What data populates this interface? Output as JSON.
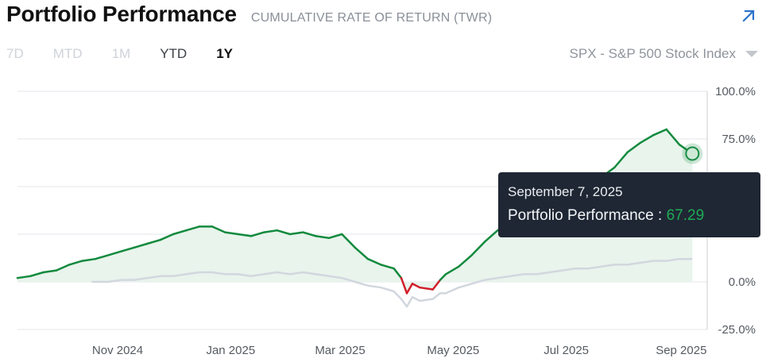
{
  "header": {
    "title": "Portfolio Performance",
    "subtitle": "CUMULATIVE RATE OF RETURN (TWR)"
  },
  "ranges": [
    {
      "label": "7D"
    },
    {
      "label": "MTD"
    },
    {
      "label": "1M"
    },
    {
      "label": "YTD"
    },
    {
      "label": "1Y",
      "active": true
    }
  ],
  "benchmark": {
    "label": "SPX - S&P 500 Stock Index"
  },
  "tooltip": {
    "date": "September 7, 2025",
    "series": "Portfolio Performance",
    "separator": " : ",
    "value": "67.29"
  },
  "colors": {
    "portfolio": "#138a3e",
    "portfolio_negative": "#d21f2b",
    "portfolio_fill": "#e8f4ec",
    "benchmark": "#d2d7de",
    "grid": "#e3e6ea",
    "marker": "#1a8c44"
  },
  "icons": {
    "expand": "arrow-up-right-icon",
    "dropdown": "caret-down-icon"
  },
  "chart_data": {
    "type": "line",
    "ylim": [
      -25,
      100
    ],
    "yticks": [
      100,
      75,
      50,
      25,
      0,
      -25
    ],
    "ytick_labels": [
      "100.0%",
      "75.0%",
      "",
      "",
      "0.0%",
      "-25.0%"
    ],
    "xlim": [
      "2024-09-08",
      "2025-09-15"
    ],
    "xticks": [
      "2024-11-01",
      "2025-01-01",
      "2025-03-01",
      "2025-05-01",
      "2025-07-01",
      "2025-09-01"
    ],
    "xtick_labels": [
      "Nov 2024",
      "Jan 2025",
      "Mar 2025",
      "May 2025",
      "Jul 2025",
      "Sep 2025"
    ],
    "grid": true,
    "series": [
      {
        "name": "Portfolio Performance",
        "x": [
          "2024-09-08",
          "2024-09-15",
          "2024-09-22",
          "2024-09-29",
          "2024-10-06",
          "2024-10-13",
          "2024-10-20",
          "2024-10-27",
          "2024-11-03",
          "2024-11-10",
          "2024-11-17",
          "2024-11-24",
          "2024-12-01",
          "2024-12-08",
          "2024-12-15",
          "2024-12-22",
          "2024-12-29",
          "2025-01-05",
          "2025-01-12",
          "2025-01-19",
          "2025-01-26",
          "2025-02-02",
          "2025-02-09",
          "2025-02-16",
          "2025-02-23",
          "2025-03-02",
          "2025-03-09",
          "2025-03-16",
          "2025-03-23",
          "2025-03-30",
          "2025-04-03",
          "2025-04-06",
          "2025-04-09",
          "2025-04-13",
          "2025-04-20",
          "2025-04-24",
          "2025-04-27",
          "2025-05-04",
          "2025-05-11",
          "2025-05-18",
          "2025-05-25",
          "2025-06-01",
          "2025-06-08",
          "2025-06-15",
          "2025-06-22",
          "2025-06-29",
          "2025-07-06",
          "2025-07-13",
          "2025-07-20",
          "2025-07-27",
          "2025-08-03",
          "2025-08-10",
          "2025-08-17",
          "2025-08-24",
          "2025-08-31",
          "2025-09-07"
        ],
        "y": [
          2,
          3,
          5,
          6,
          9,
          11,
          12,
          14,
          16,
          18,
          20,
          22,
          25,
          27,
          29,
          29,
          26,
          25,
          24,
          26,
          27,
          25,
          26,
          24,
          23,
          25,
          18,
          12,
          9,
          7,
          2,
          -6,
          -1,
          -3,
          -4,
          1,
          4,
          8,
          14,
          21,
          27,
          31,
          30,
          33,
          37,
          40,
          43,
          47,
          55,
          60,
          68,
          73,
          77,
          80,
          72,
          67.29
        ]
      },
      {
        "name": "SPX - S&P 500 Stock Index",
        "x": [
          "2024-10-18",
          "2024-10-27",
          "2024-11-03",
          "2024-11-10",
          "2024-11-17",
          "2024-11-24",
          "2024-12-01",
          "2024-12-08",
          "2024-12-15",
          "2024-12-22",
          "2024-12-29",
          "2025-01-05",
          "2025-01-12",
          "2025-01-19",
          "2025-01-26",
          "2025-02-02",
          "2025-02-09",
          "2025-02-16",
          "2025-02-23",
          "2025-03-02",
          "2025-03-09",
          "2025-03-16",
          "2025-03-23",
          "2025-03-30",
          "2025-04-03",
          "2025-04-06",
          "2025-04-09",
          "2025-04-13",
          "2025-04-20",
          "2025-04-24",
          "2025-04-27",
          "2025-05-04",
          "2025-05-11",
          "2025-05-18",
          "2025-05-25",
          "2025-06-01",
          "2025-06-08",
          "2025-06-15",
          "2025-06-22",
          "2025-06-29",
          "2025-07-06",
          "2025-07-13",
          "2025-07-20",
          "2025-07-27",
          "2025-08-03",
          "2025-08-10",
          "2025-08-17",
          "2025-08-24",
          "2025-08-31",
          "2025-09-07"
        ],
        "y": [
          0,
          0,
          1,
          1,
          2,
          3,
          3,
          4,
          5,
          5,
          4,
          4,
          3,
          4,
          5,
          4,
          5,
          4,
          3,
          2,
          0,
          -2,
          -3,
          -5,
          -9,
          -13,
          -8,
          -10,
          -9,
          -6,
          -6,
          -3,
          -1,
          1,
          2,
          3,
          4,
          4,
          5,
          6,
          7,
          7,
          8,
          9,
          9,
          10,
          11,
          11,
          12,
          12
        ]
      }
    ]
  }
}
